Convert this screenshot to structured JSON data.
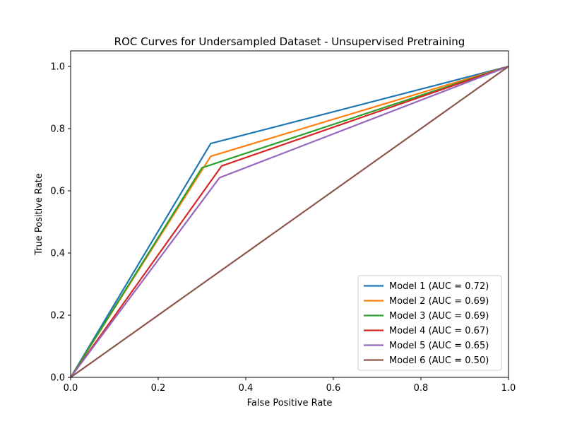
{
  "chart_data": {
    "type": "line",
    "title": "ROC Curves for Undersampled Dataset - Unsupervised Pretraining",
    "xlabel": "False Positive Rate",
    "ylabel": "True Positive Rate",
    "xlim": [
      0.0,
      1.0
    ],
    "ylim": [
      0.0,
      1.05
    ],
    "xticks": [
      0.0,
      0.2,
      0.4,
      0.6,
      0.8,
      1.0
    ],
    "xtick_labels": [
      "0.0",
      "0.2",
      "0.4",
      "0.6",
      "0.8",
      "1.0"
    ],
    "yticks": [
      0.0,
      0.2,
      0.4,
      0.6,
      0.8,
      1.0
    ],
    "ytick_labels": [
      "0.0",
      "0.2",
      "0.4",
      "0.6",
      "0.8",
      "1.0"
    ],
    "grid": false,
    "legend_position": "lower-right",
    "series": [
      {
        "name": "Model 1 (AUC = 0.72)",
        "color": "#1f77b4",
        "x": [
          0.0,
          0.32,
          1.0
        ],
        "y": [
          0.0,
          0.752,
          1.0
        ]
      },
      {
        "name": "Model 2 (AUC = 0.69)",
        "color": "#ff7f0e",
        "x": [
          0.0,
          0.32,
          1.0
        ],
        "y": [
          0.0,
          0.711,
          1.0
        ]
      },
      {
        "name": "Model 3 (AUC = 0.69)",
        "color": "#2ca02c",
        "x": [
          0.0,
          0.3,
          1.0
        ],
        "y": [
          0.0,
          0.674,
          1.0
        ]
      },
      {
        "name": "Model 4 (AUC = 0.67)",
        "color": "#d62728",
        "x": [
          0.0,
          0.345,
          1.0
        ],
        "y": [
          0.0,
          0.68,
          1.0
        ]
      },
      {
        "name": "Model 5 (AUC = 0.65)",
        "color": "#9467bd",
        "x": [
          0.0,
          0.34,
          1.0
        ],
        "y": [
          0.0,
          0.642,
          1.0
        ]
      },
      {
        "name": "Model 6 (AUC = 0.50)",
        "color": "#8c564b",
        "x": [
          0.0,
          1.0
        ],
        "y": [
          0.0,
          1.0
        ]
      }
    ]
  }
}
